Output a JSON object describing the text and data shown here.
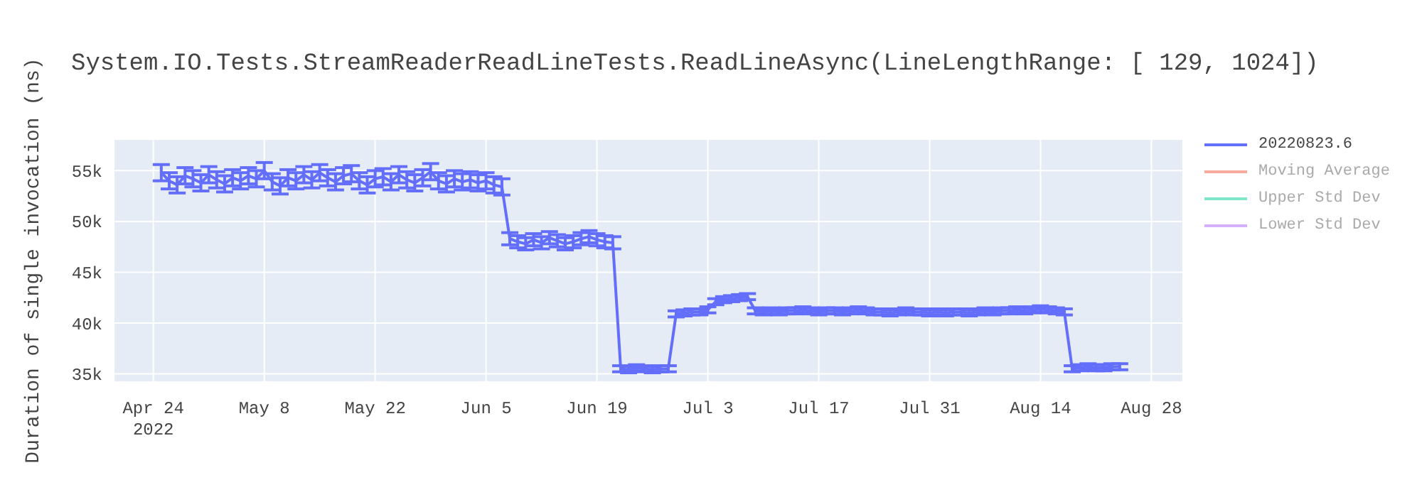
{
  "chart_data": {
    "type": "line",
    "title": "System.IO.Tests.StreamReaderReadLineTests.ReadLineAsync(LineLengthRange: [ 129, 1024])",
    "ylabel": "Duration of single invocation (ns)",
    "x": [
      "2022-04-25",
      "2022-04-26",
      "2022-04-27",
      "2022-04-28",
      "2022-04-29",
      "2022-04-30",
      "2022-05-01",
      "2022-05-02",
      "2022-05-03",
      "2022-05-04",
      "2022-05-05",
      "2022-05-06",
      "2022-05-07",
      "2022-05-08",
      "2022-05-09",
      "2022-05-10",
      "2022-05-11",
      "2022-05-12",
      "2022-05-13",
      "2022-05-14",
      "2022-05-15",
      "2022-05-16",
      "2022-05-17",
      "2022-05-18",
      "2022-05-19",
      "2022-05-20",
      "2022-05-21",
      "2022-05-22",
      "2022-05-23",
      "2022-05-24",
      "2022-05-25",
      "2022-05-26",
      "2022-05-27",
      "2022-05-28",
      "2022-05-29",
      "2022-05-30",
      "2022-05-31",
      "2022-06-01",
      "2022-06-02",
      "2022-06-03",
      "2022-06-04",
      "2022-06-05",
      "2022-06-06",
      "2022-06-07",
      "2022-06-08",
      "2022-06-09",
      "2022-06-10",
      "2022-06-11",
      "2022-06-12",
      "2022-06-13",
      "2022-06-14",
      "2022-06-15",
      "2022-06-16",
      "2022-06-17",
      "2022-06-18",
      "2022-06-19",
      "2022-06-20",
      "2022-06-21",
      "2022-06-22",
      "2022-06-23",
      "2022-06-24",
      "2022-06-25",
      "2022-06-26",
      "2022-06-27",
      "2022-06-28",
      "2022-06-29",
      "2022-06-30",
      "2022-07-01",
      "2022-07-02",
      "2022-07-03",
      "2022-07-04",
      "2022-07-05",
      "2022-07-06",
      "2022-07-07",
      "2022-07-08",
      "2022-07-09",
      "2022-07-10",
      "2022-07-11",
      "2022-07-12",
      "2022-07-13",
      "2022-07-14",
      "2022-07-15",
      "2022-07-16",
      "2022-07-17",
      "2022-07-18",
      "2022-07-19",
      "2022-07-20",
      "2022-07-21",
      "2022-07-22",
      "2022-07-23",
      "2022-07-24",
      "2022-07-25",
      "2022-07-26",
      "2022-07-27",
      "2022-07-28",
      "2022-07-29",
      "2022-07-30",
      "2022-07-31",
      "2022-08-01",
      "2022-08-02",
      "2022-08-03",
      "2022-08-04",
      "2022-08-05",
      "2022-08-06",
      "2022-08-07",
      "2022-08-08",
      "2022-08-09",
      "2022-08-10",
      "2022-08-11",
      "2022-08-12",
      "2022-08-13",
      "2022-08-14",
      "2022-08-15",
      "2022-08-16",
      "2022-08-17",
      "2022-08-18",
      "2022-08-19",
      "2022-08-20",
      "2022-08-21",
      "2022-08-22",
      "2022-08-23",
      "2022-08-24"
    ],
    "series": [
      {
        "name": "20220823.6",
        "color": "#636efa",
        "values": [
          54800,
          54000,
          53600,
          54500,
          54200,
          53800,
          54600,
          54100,
          53700,
          54300,
          54000,
          54500,
          54200,
          55000,
          53900,
          53500,
          54300,
          54000,
          54600,
          54100,
          54800,
          54300,
          53900,
          54500,
          54700,
          54000,
          53600,
          54200,
          54400,
          53900,
          54600,
          54100,
          53800,
          54300,
          54900,
          54000,
          53700,
          54200,
          53900,
          54100,
          53800,
          54000,
          53600,
          53400,
          48300,
          48000,
          47800,
          48200,
          47900,
          48400,
          48100,
          47800,
          48000,
          48300,
          48500,
          48200,
          48000,
          47900,
          35500,
          35400,
          35600,
          35500,
          35400,
          35500,
          35500,
          40900,
          41000,
          41100,
          41100,
          41300,
          42100,
          42300,
          42400,
          42500,
          42600,
          41200,
          41100,
          41200,
          41100,
          41200,
          41200,
          41300,
          41200,
          41100,
          41200,
          41200,
          41100,
          41200,
          41300,
          41200,
          41100,
          41100,
          41000,
          41100,
          41200,
          41100,
          41100,
          41000,
          41100,
          41000,
          41100,
          41100,
          41000,
          41100,
          41200,
          41100,
          41200,
          41200,
          41300,
          41200,
          41300,
          41400,
          41300,
          41200,
          41100,
          35500,
          35600,
          35700,
          35600,
          35600,
          35700,
          35700
        ],
        "errors": [
          800,
          800,
          800,
          800,
          800,
          800,
          800,
          800,
          800,
          800,
          800,
          800,
          800,
          800,
          800,
          800,
          800,
          800,
          800,
          800,
          800,
          800,
          800,
          800,
          800,
          800,
          800,
          800,
          800,
          800,
          800,
          800,
          800,
          800,
          800,
          800,
          800,
          800,
          800,
          800,
          800,
          800,
          800,
          800,
          600,
          600,
          600,
          600,
          600,
          600,
          600,
          600,
          600,
          600,
          600,
          600,
          600,
          600,
          300,
          300,
          300,
          300,
          300,
          300,
          300,
          300,
          300,
          300,
          300,
          300,
          300,
          300,
          300,
          300,
          300,
          300,
          300,
          300,
          300,
          300,
          300,
          300,
          300,
          300,
          300,
          300,
          300,
          300,
          300,
          300,
          300,
          300,
          300,
          300,
          300,
          300,
          300,
          300,
          300,
          300,
          300,
          300,
          300,
          300,
          300,
          300,
          300,
          300,
          300,
          300,
          300,
          300,
          300,
          300,
          300,
          300,
          300,
          300,
          300,
          300,
          300,
          300
        ]
      },
      {
        "name": "Moving Average",
        "color": "#f7aa9d",
        "values": [
          null,
          null,
          null,
          null,
          null,
          null,
          null,
          null,
          null,
          null,
          null,
          null,
          null,
          null,
          null,
          null,
          null,
          null,
          null,
          null,
          null,
          null,
          null,
          null,
          null,
          null,
          null,
          null,
          null,
          null,
          null,
          null,
          null,
          null,
          null,
          null,
          null,
          null,
          null,
          null,
          null,
          null,
          null,
          null,
          null,
          null,
          null,
          null,
          null,
          null,
          null,
          null,
          null,
          null,
          null,
          null,
          null,
          null,
          null,
          null,
          null,
          null,
          null,
          null,
          null,
          null,
          null,
          null,
          null,
          null,
          null,
          null,
          null,
          null,
          null,
          null,
          null,
          null,
          null,
          null,
          null,
          null,
          null,
          null,
          null,
          null,
          null,
          null,
          null,
          null,
          null,
          null,
          null,
          null,
          null,
          null,
          null,
          null,
          null,
          null,
          null,
          null,
          null,
          null,
          null,
          null,
          null,
          null,
          null,
          null,
          null,
          null,
          null,
          null,
          null,
          null,
          null,
          null,
          null,
          null,
          null,
          null
        ]
      },
      {
        "name": "Upper Std Dev",
        "color": "#80e6cb",
        "values": [
          null,
          null,
          null,
          null,
          null,
          null,
          null,
          null,
          null,
          null,
          null,
          null,
          null,
          null,
          null,
          null,
          null,
          null,
          null,
          null,
          null,
          null,
          null,
          null,
          null,
          null,
          null,
          null,
          null,
          null,
          null,
          null,
          null,
          null,
          null,
          null,
          null,
          null,
          null,
          null,
          null,
          null,
          null,
          null,
          null,
          null,
          null,
          null,
          null,
          null,
          null,
          null,
          null,
          null,
          null,
          null,
          null,
          null,
          null,
          null,
          null,
          null,
          null,
          null,
          null,
          null,
          null,
          null,
          null,
          null,
          null,
          null,
          null,
          null,
          null,
          null,
          null,
          null,
          null,
          null,
          null,
          null,
          null,
          null,
          null,
          null,
          null,
          null,
          null,
          null,
          null,
          null,
          null,
          null,
          null,
          null,
          null,
          null,
          null,
          null,
          null,
          null,
          null,
          null,
          null,
          null,
          null,
          null,
          null,
          null,
          null,
          null,
          null,
          null,
          null,
          null,
          null,
          null,
          null,
          null,
          null,
          null
        ]
      },
      {
        "name": "Lower Std Dev",
        "color": "#d5b1fd",
        "values": [
          null,
          null,
          null,
          null,
          null,
          null,
          null,
          null,
          null,
          null,
          null,
          null,
          null,
          null,
          null,
          null,
          null,
          null,
          null,
          null,
          null,
          null,
          null,
          null,
          null,
          null,
          null,
          null,
          null,
          null,
          null,
          null,
          null,
          null,
          null,
          null,
          null,
          null,
          null,
          null,
          null,
          null,
          null,
          null,
          null,
          null,
          null,
          null,
          null,
          null,
          null,
          null,
          null,
          null,
          null,
          null,
          null,
          null,
          null,
          null,
          null,
          null,
          null,
          null,
          null,
          null,
          null,
          null,
          null,
          null,
          null,
          null,
          null,
          null,
          null,
          null,
          null,
          null,
          null,
          null,
          null,
          null,
          null,
          null,
          null,
          null,
          null,
          null,
          null,
          null,
          null,
          null,
          null,
          null,
          null,
          null,
          null,
          null,
          null,
          null,
          null,
          null,
          null,
          null,
          null,
          null,
          null,
          null,
          null,
          null,
          null,
          null,
          null,
          null,
          null,
          null,
          null,
          null,
          null,
          null,
          null,
          null
        ]
      }
    ],
    "xlim": [
      "2022-04-19",
      "2022-09-01"
    ],
    "xticks": [
      {
        "value": "2022-04-24",
        "label": "Apr 24\n2022"
      },
      {
        "value": "2022-05-08",
        "label": "May 8"
      },
      {
        "value": "2022-05-22",
        "label": "May 22"
      },
      {
        "value": "2022-06-05",
        "label": "Jun 5"
      },
      {
        "value": "2022-06-19",
        "label": "Jun 19"
      },
      {
        "value": "2022-07-03",
        "label": "Jul 3"
      },
      {
        "value": "2022-07-17",
        "label": "Jul 17"
      },
      {
        "value": "2022-07-31",
        "label": "Jul 31"
      },
      {
        "value": "2022-08-14",
        "label": "Aug 14"
      },
      {
        "value": "2022-08-28",
        "label": "Aug 28"
      }
    ],
    "ylim": [
      34200,
      58100
    ],
    "yticks": [
      {
        "value": 35000,
        "label": "35k"
      },
      {
        "value": 40000,
        "label": "40k"
      },
      {
        "value": 45000,
        "label": "45k"
      },
      {
        "value": 50000,
        "label": "50k"
      },
      {
        "value": 55000,
        "label": "55k"
      }
    ],
    "grid": true,
    "legend": "top right",
    "marker": "none",
    "line_style": "solid"
  }
}
